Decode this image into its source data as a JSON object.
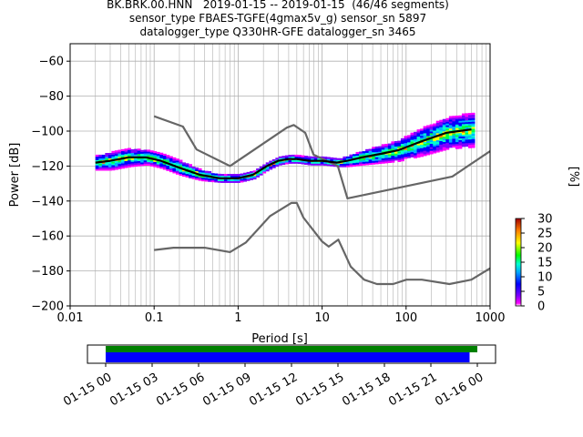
{
  "title_lines": [
    "BK.BRK.00.HNN   2019-01-15 -- 2019-01-15  (46/46 segments)",
    "sensor_type FBAES-TGFE(4gmax5v_g) sensor_sn 5897",
    "datalogger_type Q330HR-GFE datalogger_sn 3465"
  ],
  "chart_data": [
    {
      "type": "heatmap",
      "xlabel": "Period [s]",
      "ylabel": "Power [dB]",
      "xscale": "log",
      "xlim": [
        0.01,
        1000
      ],
      "ylim": [
        -200,
        -50
      ],
      "x_ticks": [
        0.01,
        0.1,
        1,
        10,
        100,
        1000
      ],
      "x_tick_labels": [
        "0.01",
        "0.1",
        "1",
        "10",
        "100",
        "1000"
      ],
      "y_ticks": [
        -200,
        -180,
        -160,
        -140,
        -120,
        -100,
        -80,
        -60
      ],
      "y_tick_labels": [
        "−200",
        "−180",
        "−160",
        "−140",
        "−120",
        "−100",
        "−80",
        "−60"
      ],
      "grid": true,
      "colorbar": {
        "label": "[%]",
        "range": [
          0,
          30
        ],
        "ticks": [
          0,
          5,
          10,
          15,
          20,
          25,
          30
        ],
        "tick_labels": [
          "0",
          "5",
          "10",
          "15",
          "20",
          "25",
          "30"
        ]
      },
      "series": [
        {
          "name": "",
          "role": "noise-model-upper",
          "color": "#666666",
          "x": [
            0.1,
            0.22,
            0.32,
            0.8,
            3.8,
            4.6,
            6.3,
            7.9,
            15.4,
            20,
            354.8,
            1000
          ],
          "y": [
            -91.5,
            -97.4,
            -110.5,
            -120,
            -98,
            -96.5,
            -101,
            -113.5,
            -120,
            -138.5,
            -126,
            -111.5
          ]
        },
        {
          "name": "",
          "role": "noise-model-lower",
          "color": "#666666",
          "x": [
            0.1,
            0.17,
            0.4,
            0.8,
            1.24,
            2.4,
            4.3,
            5,
            6,
            10,
            12,
            15.6,
            21.9,
            31.6,
            45,
            70,
            101,
            154,
            328,
            600,
            1000
          ],
          "y": [
            -168,
            -166.7,
            -166.7,
            -169.2,
            -163.7,
            -148.6,
            -141.1,
            -141.1,
            -149.5,
            -163.2,
            -166.1,
            -162.1,
            -177.5,
            -185,
            -187.5,
            -187.5,
            -185,
            -185,
            -187.5,
            -185,
            -178.5
          ]
        },
        {
          "name": "",
          "role": "mode",
          "color": "#000000",
          "x": [
            0.02,
            0.03,
            0.05,
            0.08,
            0.12,
            0.2,
            0.35,
            0.6,
            1,
            1.5,
            2.2,
            3,
            4,
            5,
            7,
            10,
            15,
            20,
            30,
            50,
            80,
            150,
            300,
            600
          ],
          "y": [
            -118,
            -117,
            -115,
            -115,
            -117,
            -121,
            -125,
            -127,
            -127,
            -125,
            -120,
            -117,
            -116,
            -116,
            -117,
            -117,
            -118,
            -117,
            -115,
            -113,
            -111,
            -106,
            -101,
            -99
          ]
        }
      ],
      "density_band": {
        "x": [
          0.02,
          0.03,
          0.05,
          0.08,
          0.12,
          0.2,
          0.35,
          0.6,
          1,
          1.5,
          2.2,
          3,
          4,
          5,
          7,
          10,
          15,
          20,
          30,
          50,
          80,
          150,
          300,
          600
        ],
        "center": [
          -118,
          -117,
          -115,
          -115,
          -117,
          -121,
          -125,
          -127,
          -127,
          -125,
          -120,
          -117,
          -116,
          -116,
          -117,
          -117,
          -118,
          -117,
          -115,
          -113,
          -111,
          -106,
          -101,
          -99
        ],
        "halfwidth": [
          4,
          5,
          5,
          4,
          4,
          4,
          3,
          2,
          2,
          2,
          2,
          2,
          2,
          2,
          2,
          2,
          2,
          3,
          4,
          5,
          6,
          8,
          9,
          10
        ]
      }
    },
    {
      "type": "bar",
      "role": "data-coverage",
      "x_tick_labels": [
        "01-15 00",
        "01-15 03",
        "01-15 06",
        "01-15 09",
        "01-15 12",
        "01-15 15",
        "01-15 18",
        "01-15 21",
        "01-16 00"
      ],
      "series": [
        {
          "name": "",
          "color": "#008000",
          "start": "01-15 00",
          "end": "01-16 00"
        },
        {
          "name": "",
          "color": "#0000ff",
          "start": "01-15 00",
          "end": "01-15 23:30"
        }
      ]
    }
  ]
}
